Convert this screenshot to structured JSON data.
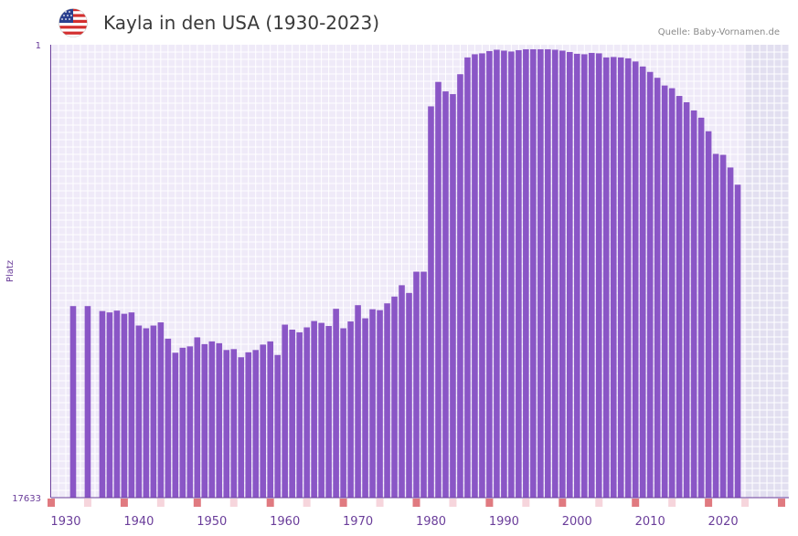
{
  "header": {
    "title": "Kayla in den USA (1930-2023)",
    "source": "Quelle: Baby-Vornamen.de",
    "flag_icon": "us-flag-icon"
  },
  "colors": {
    "bar": "#8a56c6",
    "plot_bg": "#efeaf8",
    "grid": "#ffffff",
    "future_shade": "#e2dff0",
    "axis": "#6a3d9a",
    "marker_strong": "#e07a80",
    "marker_light": "#f6d5dc"
  },
  "chart_data": {
    "type": "bar",
    "title": "Kayla in den USA (1930-2023)",
    "ylabel": "Platz",
    "xlabel": "",
    "y_axis": {
      "top_label": "1",
      "bottom_label": "17633",
      "min_rank": 1,
      "max_rank": 17633
    },
    "x_range": [
      1928,
      2029
    ],
    "future_from": 2023,
    "x_tick_labels": [
      "1930",
      "1940",
      "1950",
      "1960",
      "1970",
      "1980",
      "1990",
      "2000",
      "2010",
      "2020"
    ],
    "x_tick_years": [
      1930,
      1940,
      1950,
      1960,
      1970,
      1980,
      1990,
      2000,
      2010,
      2020
    ],
    "bar_height_unit": "fraction of axis height (rank on log scale, 1 = top rank)",
    "years": [
      1931,
      1932,
      1933,
      1934,
      1935,
      1936,
      1937,
      1938,
      1939,
      1940,
      1941,
      1942,
      1943,
      1944,
      1945,
      1946,
      1947,
      1948,
      1949,
      1950,
      1951,
      1952,
      1953,
      1954,
      1955,
      1956,
      1957,
      1958,
      1959,
      1960,
      1961,
      1962,
      1963,
      1964,
      1965,
      1966,
      1967,
      1968,
      1969,
      1970,
      1971,
      1972,
      1973,
      1974,
      1975,
      1976,
      1977,
      1978,
      1979,
      1980,
      1981,
      1982,
      1983,
      1984,
      1985,
      1986,
      1987,
      1988,
      1989,
      1990,
      1991,
      1992,
      1993,
      1994,
      1995,
      1996,
      1997,
      1998,
      1999,
      2000,
      2001,
      2002,
      2003,
      2004,
      2005,
      2006,
      2007,
      2008,
      2009,
      2010,
      2011,
      2012,
      2013,
      2014,
      2015,
      2016,
      2017,
      2018,
      2019,
      2020,
      2021,
      2022
    ],
    "values": [
      0.423,
      0,
      0.423,
      0,
      0.412,
      0.409,
      0.413,
      0.406,
      0.409,
      0.38,
      0.374,
      0.38,
      0.387,
      0.351,
      0.32,
      0.331,
      0.334,
      0.354,
      0.339,
      0.345,
      0.341,
      0.326,
      0.328,
      0.31,
      0.321,
      0.326,
      0.338,
      0.345,
      0.315,
      0.382,
      0.371,
      0.365,
      0.376,
      0.39,
      0.386,
      0.379,
      0.417,
      0.374,
      0.389,
      0.425,
      0.396,
      0.416,
      0.414,
      0.429,
      0.444,
      0.469,
      0.452,
      0.499,
      0.499,
      0.864,
      0.918,
      0.897,
      0.891,
      0.935,
      0.972,
      0.979,
      0.981,
      0.986,
      0.989,
      0.987,
      0.985,
      0.988,
      0.99,
      0.99,
      0.99,
      0.99,
      0.989,
      0.987,
      0.984,
      0.98,
      0.979,
      0.982,
      0.981,
      0.972,
      0.973,
      0.972,
      0.97,
      0.963,
      0.952,
      0.94,
      0.927,
      0.91,
      0.904,
      0.887,
      0.873,
      0.855,
      0.839,
      0.809,
      0.759,
      0.757,
      0.729,
      0.691
    ],
    "decade_markers": {
      "strong_years": [
        1928,
        1938,
        1948,
        1958,
        1968,
        1978,
        1988,
        1998,
        2008,
        2018,
        2028
      ],
      "light_years": [
        1933,
        1943,
        1953,
        1963,
        1973,
        1983,
        1993,
        2003,
        2013,
        2023
      ]
    }
  }
}
